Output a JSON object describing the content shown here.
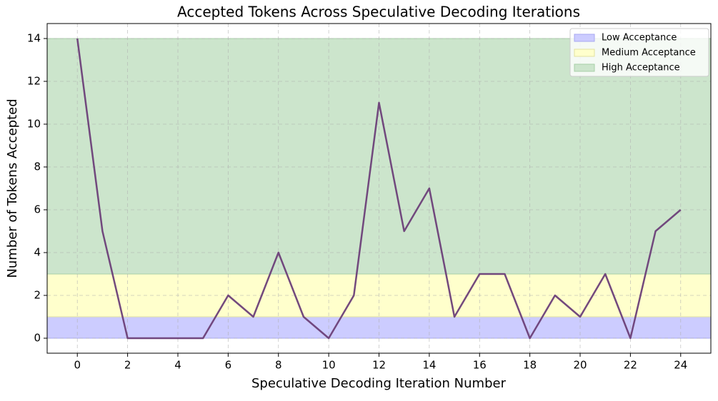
{
  "chart_data": {
    "type": "line",
    "title": "Accepted Tokens Across Speculative Decoding Iterations",
    "x_label": "Speculative Decoding Iteration Number",
    "y_label": "Number of Tokens Accepted",
    "x": [
      0,
      1,
      2,
      3,
      4,
      5,
      6,
      7,
      8,
      9,
      10,
      11,
      12,
      13,
      14,
      15,
      16,
      17,
      18,
      19,
      20,
      21,
      22,
      23,
      24
    ],
    "values": [
      14,
      5,
      0,
      0,
      0,
      0,
      2,
      1,
      4,
      1,
      0,
      2,
      11,
      5,
      7,
      1,
      3,
      3,
      0,
      2,
      1,
      3,
      0,
      5,
      6
    ],
    "color": "#6c3f78",
    "bands": [
      {
        "name": "Low Acceptance",
        "color": "#ccccff",
        "edge": "#a8a8f0",
        "range": [
          0,
          1
        ]
      },
      {
        "name": "Medium Acceptance",
        "color": "#ffffcc",
        "edge": "#e2e2a0",
        "range": [
          1,
          3
        ]
      },
      {
        "name": "High Acceptance",
        "color": "#cce5cc",
        "edge": "#a8d0a8",
        "range": [
          3,
          14
        ]
      }
    ],
    "xlim": [
      -1.2,
      25.2
    ],
    "ylim": [
      -0.7,
      14.7
    ],
    "xticks": [
      0,
      2,
      4,
      6,
      8,
      10,
      12,
      14,
      16,
      18,
      20,
      22,
      24
    ],
    "yticks": [
      0,
      2,
      4,
      6,
      8,
      10,
      12,
      14
    ],
    "grid": true,
    "legend": "upper right"
  }
}
